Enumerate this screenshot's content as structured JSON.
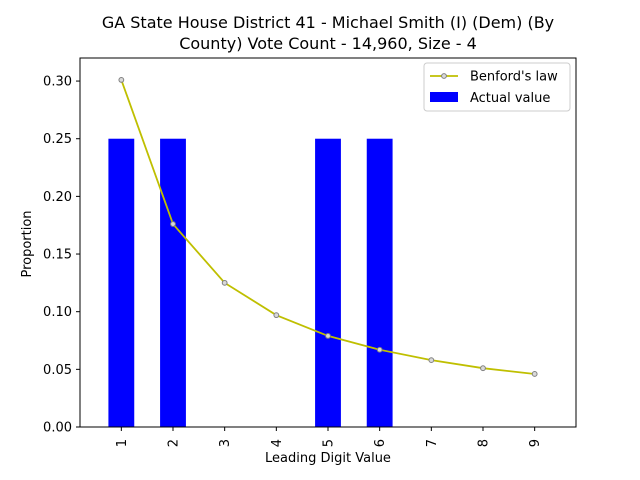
{
  "chart_data": {
    "type": "bar",
    "title_lines": [
      "GA State House District 41 - Michael Smith (I) (Dem) (By",
      "County) Vote Count - 14,960, Size - 4"
    ],
    "xlabel": "Leading Digit Value",
    "ylabel": "Proportion",
    "categories": [
      "1",
      "2",
      "3",
      "4",
      "5",
      "6",
      "7",
      "8",
      "9"
    ],
    "ylim": [
      0,
      0.32
    ],
    "yticks": [
      "0.00",
      "0.05",
      "0.10",
      "0.15",
      "0.20",
      "0.25",
      "0.30"
    ],
    "grid": false,
    "legend_position": "top-right",
    "series": [
      {
        "name": "Benford's law",
        "kind": "line",
        "color": "#bfbf00",
        "marker_color": "#808080",
        "values": [
          0.301,
          0.176,
          0.125,
          0.097,
          0.079,
          0.067,
          0.058,
          0.051,
          0.046
        ]
      },
      {
        "name": "Actual value",
        "kind": "bar",
        "color": "#0000ff",
        "values": [
          0.25,
          0.25,
          0.0,
          0.0,
          0.25,
          0.25,
          0.0,
          0.0,
          0.0
        ]
      }
    ]
  }
}
